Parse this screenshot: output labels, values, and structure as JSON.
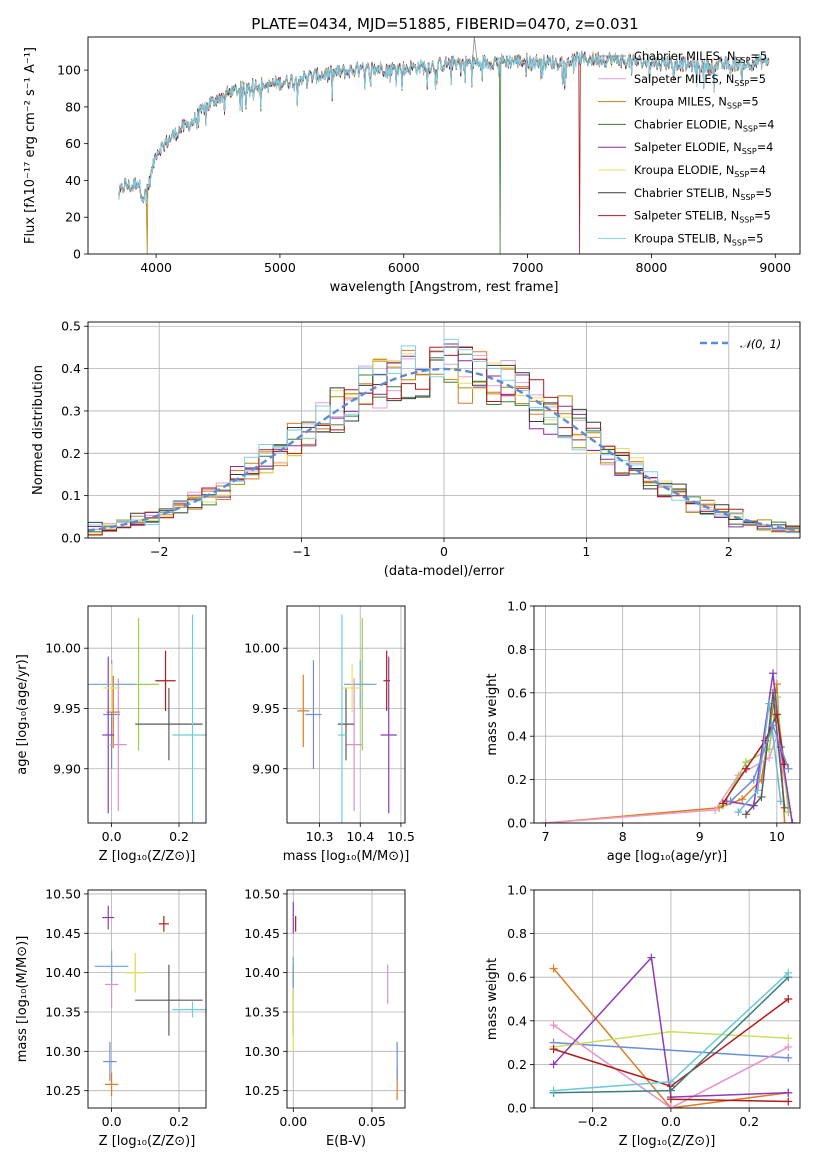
{
  "figure": {
    "title": "PLATE=0434, MJD=51885, FIBERID=0470, z=0.031"
  },
  "colors": {
    "series": [
      "#8e8e8e",
      "#e0a0d8",
      "#b8860b",
      "#3e7e3e",
      "#8c2c9c",
      "#e8e060",
      "#3a3a3a",
      "#b01c1c",
      "#80d0e8"
    ],
    "errorbar": [
      "#e07b20",
      "#6a8edc",
      "#e090c8",
      "#9bd050",
      "#8c3cb8",
      "#b01c1c",
      "#5a5a5a",
      "#68d0d8",
      "#7ea8e0",
      "#e8e060"
    ]
  },
  "chart_data": [
    {
      "type": "line",
      "name": "spectrum",
      "title": "PLATE=0434, MJD=51885, FIBERID=0470, z=0.031",
      "xlabel": "wavelength [Angstrom, rest frame]",
      "ylabel": "Flux [fλ10⁻¹⁷ erg cm⁻² s⁻¹ A⁻¹]",
      "xlim": [
        3450,
        9200
      ],
      "ylim": [
        0,
        118
      ],
      "xticks": [
        4000,
        5000,
        6000,
        7000,
        8000,
        9000
      ],
      "yticks": [
        0,
        20,
        40,
        60,
        80,
        100
      ],
      "grid": false,
      "legend_position": "upper-right",
      "x_range": [
        3700,
        8950
      ],
      "series": [
        {
          "name": "Chabrier MILES, N_SSP=5",
          "label_main": "Chabrier MILES, N",
          "label_sub": "SSP",
          "label_tail": "=5"
        },
        {
          "name": "Salpeter MILES, N_SSP=5",
          "label_main": "Salpeter MILES, N",
          "label_sub": "SSP",
          "label_tail": "=5"
        },
        {
          "name": "Kroupa MILES, N_SSP=5",
          "label_main": "Kroupa MILES, N",
          "label_sub": "SSP",
          "label_tail": "=5"
        },
        {
          "name": "Chabrier ELODIE, N_SSP=4",
          "label_main": "Chabrier ELODIE, N",
          "label_sub": "SSP",
          "label_tail": "=4"
        },
        {
          "name": "Salpeter ELODIE, N_SSP=4",
          "label_main": "Salpeter ELODIE, N",
          "label_sub": "SSP",
          "label_tail": "=4"
        },
        {
          "name": "Kroupa ELODIE, N_SSP=4",
          "label_main": "Kroupa ELODIE, N",
          "label_sub": "SSP",
          "label_tail": "=4"
        },
        {
          "name": "Chabrier STELIB, N_SSP=5",
          "label_main": "Chabrier STELIB, N",
          "label_sub": "SSP",
          "label_tail": "=5"
        },
        {
          "name": "Salpeter STELIB, N_SSP=5",
          "label_main": "Salpeter STELIB, N",
          "label_sub": "SSP",
          "label_tail": "=5"
        },
        {
          "name": "Kroupa STELIB, N_SSP=5",
          "label_main": "Kroupa STELIB, N",
          "label_sub": "SSP",
          "label_tail": "=5"
        }
      ],
      "continuum": [
        [
          3700,
          32
        ],
        [
          3750,
          38
        ],
        [
          3800,
          36
        ],
        [
          3850,
          40
        ],
        [
          3900,
          30
        ],
        [
          3950,
          40
        ],
        [
          4000,
          55
        ],
        [
          4100,
          62
        ],
        [
          4200,
          68
        ],
        [
          4300,
          72
        ],
        [
          4400,
          80
        ],
        [
          4500,
          85
        ],
        [
          4600,
          88
        ],
        [
          4700,
          90
        ],
        [
          4800,
          92
        ],
        [
          4900,
          92
        ],
        [
          5000,
          93
        ],
        [
          5200,
          96
        ],
        [
          5400,
          98
        ],
        [
          5600,
          100
        ],
        [
          5800,
          101
        ],
        [
          6000,
          101
        ],
        [
          6200,
          102
        ],
        [
          6400,
          104
        ],
        [
          6600,
          104
        ],
        [
          6800,
          105
        ],
        [
          7000,
          105
        ],
        [
          7200,
          104
        ],
        [
          7400,
          106
        ],
        [
          7600,
          106
        ],
        [
          7800,
          105
        ],
        [
          8000,
          104
        ],
        [
          8200,
          104
        ],
        [
          8400,
          102
        ],
        [
          8600,
          103
        ],
        [
          8800,
          104
        ],
        [
          8950,
          105
        ]
      ],
      "drops": [
        {
          "x": 3930,
          "y": 0,
          "series_index": 2
        },
        {
          "x": 6780,
          "y": 0,
          "series_index": 3
        },
        {
          "x": 7420,
          "y": 0,
          "series_index": 7
        }
      ],
      "spike": {
        "x": 6570,
        "y": 118
      }
    },
    {
      "type": "histogram",
      "name": "residual-distribution",
      "xlabel": "(data-model)/error",
      "ylabel": "Normed distribution",
      "xlim": [
        -2.5,
        2.5
      ],
      "ylim": [
        0,
        0.51
      ],
      "xticks": [
        -2,
        -1,
        0,
        1,
        2
      ],
      "yticks": [
        0.0,
        0.1,
        0.2,
        0.3,
        0.4,
        0.5
      ],
      "grid": true,
      "legend": [
        {
          "name": "𝒩(0, 1)",
          "style": "dashed"
        }
      ],
      "reference_curve": {
        "type": "gaussian",
        "mean": 0,
        "sigma": 1
      },
      "bin_width": 0.1
    },
    {
      "type": "scatter",
      "name": "age-vs-Z",
      "xlabel": "Z [log₁₀(Z/Z⊙)]",
      "ylabel": "age  [log₁₀(age/yr)]",
      "xlim": [
        -0.07,
        0.28
      ],
      "ylim": [
        9.855,
        10.035
      ],
      "xticks": [
        0.0,
        0.2
      ],
      "yticks": [
        9.9,
        9.95,
        10.0
      ],
      "grid": true,
      "points": [
        {
          "x": 0.005,
          "y": 9.947,
          "dx": 0.02,
          "dy": 0.03
        },
        {
          "x": 0.0,
          "y": 9.945,
          "dx": 0.025,
          "dy": 0.045
        },
        {
          "x": 0.02,
          "y": 9.92,
          "dx": 0.025,
          "dy": 0.055
        },
        {
          "x": 0.08,
          "y": 9.97,
          "dx": 0.06,
          "dy": 0.055
        },
        {
          "x": -0.01,
          "y": 9.928,
          "dx": 0.018,
          "dy": 0.065
        },
        {
          "x": 0.16,
          "y": 9.973,
          "dx": 0.03,
          "dy": 0.025
        },
        {
          "x": 0.17,
          "y": 9.937,
          "dx": 0.1,
          "dy": 0.03
        },
        {
          "x": 0.24,
          "y": 9.928,
          "dx": 0.06,
          "dy": 0.1
        },
        {
          "x": 0.0,
          "y": 9.97,
          "dx": 0.07,
          "dy": 0.02
        },
        {
          "x": 0.0,
          "y": 9.967,
          "dx": 0.025,
          "dy": 0.02
        }
      ]
    },
    {
      "type": "scatter",
      "name": "age-vs-mass",
      "xlabel": "mass [log₁₀(M/M⊙)]",
      "ylabel": "",
      "xlim": [
        10.22,
        10.51
      ],
      "ylim": [
        9.855,
        10.035
      ],
      "xticks": [
        10.3,
        10.4,
        10.5
      ],
      "yticks": [
        9.9,
        9.95,
        10.0
      ],
      "grid": true,
      "points": [
        {
          "x": 10.26,
          "y": 9.948,
          "dx": 0.015,
          "dy": 0.03
        },
        {
          "x": 10.285,
          "y": 9.945,
          "dx": 0.02,
          "dy": 0.045
        },
        {
          "x": 10.385,
          "y": 9.92,
          "dx": 0.02,
          "dy": 0.055
        },
        {
          "x": 10.405,
          "y": 9.97,
          "dx": 0.02,
          "dy": 0.055
        },
        {
          "x": 10.47,
          "y": 9.928,
          "dx": 0.02,
          "dy": 0.065
        },
        {
          "x": 10.465,
          "y": 9.973,
          "dx": 0.008,
          "dy": 0.025
        },
        {
          "x": 10.365,
          "y": 9.937,
          "dx": 0.02,
          "dy": 0.03
        },
        {
          "x": 10.355,
          "y": 9.928,
          "dx": 0.01,
          "dy": 0.1
        },
        {
          "x": 10.4,
          "y": 9.97,
          "dx": 0.04,
          "dy": 0.02
        },
        {
          "x": 10.38,
          "y": 9.967,
          "dx": 0.025,
          "dy": 0.02
        }
      ]
    },
    {
      "type": "line",
      "name": "mass-weight-vs-age",
      "xlabel": "age  [log₁₀(age/yr)]",
      "ylabel": "mass weight",
      "xlim": [
        6.85,
        10.3
      ],
      "ylim": [
        0,
        1.0
      ],
      "xticks": [
        7,
        8,
        9,
        10
      ],
      "yticks": [
        0.0,
        0.2,
        0.4,
        0.6,
        0.8,
        1.0
      ],
      "grid": true,
      "series": [
        {
          "x": [
            7.0,
            9.25,
            9.55,
            9.8,
            10.0,
            10.1
          ],
          "y": [
            0.0,
            0.07,
            0.11,
            0.2,
            0.64,
            0.0
          ]
        },
        {
          "x": [
            7.0,
            9.2,
            9.5,
            9.9,
            10.0,
            10.2
          ],
          "y": [
            0.0,
            0.06,
            0.22,
            0.3,
            0.4,
            0.0
          ]
        },
        {
          "x": [
            9.3,
            9.6,
            9.9,
            10.0,
            10.15
          ],
          "y": [
            0.08,
            0.28,
            0.34,
            0.58,
            0.05
          ]
        },
        {
          "x": [
            9.35,
            9.7,
            9.95,
            10.05,
            10.2
          ],
          "y": [
            0.1,
            0.08,
            0.69,
            0.35,
            0.0
          ]
        },
        {
          "x": [
            9.3,
            9.6,
            9.85,
            10.0,
            10.1
          ],
          "y": [
            0.09,
            0.25,
            0.38,
            0.5,
            0.27
          ]
        },
        {
          "x": [
            9.5,
            9.75,
            9.9,
            10.05
          ],
          "y": [
            0.05,
            0.15,
            0.55,
            0.1
          ]
        },
        {
          "x": [
            9.6,
            9.8,
            9.95,
            10.1
          ],
          "y": [
            0.04,
            0.12,
            0.6,
            0.07
          ]
        },
        {
          "x": [
            9.4,
            9.7,
            9.95,
            10.15
          ],
          "y": [
            0.1,
            0.2,
            0.45,
            0.25
          ]
        }
      ]
    },
    {
      "type": "scatter",
      "name": "mass-vs-Z",
      "xlabel": "Z [log₁₀(Z/Z⊙)]",
      "ylabel": "mass [log₁₀(M/M⊙)]",
      "xlim": [
        -0.07,
        0.28
      ],
      "ylim": [
        10.228,
        10.505
      ],
      "xticks": [
        0.0,
        0.2
      ],
      "yticks": [
        10.25,
        10.3,
        10.35,
        10.4,
        10.45,
        10.5
      ],
      "grid": true,
      "points": [
        {
          "x": 0.0,
          "y": 10.258,
          "dx": 0.02,
          "dy": 0.015
        },
        {
          "x": -0.005,
          "y": 10.287,
          "dx": 0.02,
          "dy": 0.025
        },
        {
          "x": 0.0,
          "y": 10.385,
          "dx": 0.02,
          "dy": 0.03
        },
        {
          "x": 0.07,
          "y": 10.4,
          "dx": 0.03,
          "dy": 0.025
        },
        {
          "x": -0.01,
          "y": 10.47,
          "dx": 0.018,
          "dy": 0.015
        },
        {
          "x": 0.155,
          "y": 10.462,
          "dx": 0.015,
          "dy": 0.01
        },
        {
          "x": 0.17,
          "y": 10.365,
          "dx": 0.1,
          "dy": 0.045
        },
        {
          "x": 0.24,
          "y": 10.353,
          "dx": 0.06,
          "dy": 0.01
        },
        {
          "x": 0.0,
          "y": 10.408,
          "dx": 0.05,
          "dy": 0.02
        },
        {
          "x": 0.07,
          "y": 10.4,
          "dx": 0.03,
          "dy": 0.025
        }
      ]
    },
    {
      "type": "scatter",
      "name": "mass-vs-ebv",
      "xlabel": "E(B-V)",
      "ylabel": "",
      "xlim": [
        -0.004,
        0.071
      ],
      "ylim": [
        10.228,
        10.505
      ],
      "xticks": [
        0.0,
        0.05
      ],
      "yticks": [
        10.25,
        10.3,
        10.35,
        10.4,
        10.45,
        10.5
      ],
      "grid": true,
      "points": [
        {
          "x": 0.066,
          "y": 10.258,
          "dx": 0.0,
          "dy": 0.02
        },
        {
          "x": 0.066,
          "y": 10.287,
          "dx": 0.0,
          "dy": 0.025
        },
        {
          "x": 0.06,
          "y": 10.385,
          "dx": 0.0,
          "dy": 0.025
        },
        {
          "x": 0.0,
          "y": 10.4,
          "dx": 0.0,
          "dy": 0.02
        },
        {
          "x": 0.0,
          "y": 10.47,
          "dx": 0.0,
          "dy": 0.02
        },
        {
          "x": 0.0015,
          "y": 10.462,
          "dx": 0.0,
          "dy": 0.01
        },
        {
          "x": 0.0,
          "y": 10.365,
          "dx": 0.0,
          "dy": 0.045
        },
        {
          "x": 0.0,
          "y": 10.353,
          "dx": 0.0,
          "dy": 0.01
        },
        {
          "x": 0.0,
          "y": 10.37,
          "dx": 0.0,
          "dy": 0.05
        },
        {
          "x": 0.0,
          "y": 10.34,
          "dx": 0.0,
          "dy": 0.04
        }
      ]
    },
    {
      "type": "line",
      "name": "mass-weight-vs-Z",
      "xlabel": "Z [log₁₀(Z/Z⊙)]",
      "ylabel": "mass weight",
      "xlim": [
        -0.35,
        0.33
      ],
      "ylim": [
        0,
        1.0
      ],
      "xticks": [
        -0.2,
        0.0,
        0.2
      ],
      "yticks": [
        0.0,
        0.2,
        0.4,
        0.6,
        0.8,
        1.0
      ],
      "grid": true,
      "series": [
        {
          "x": [
            -0.3,
            0.0,
            0.3
          ],
          "y": [
            0.64,
            0.0,
            0.07
          ]
        },
        {
          "x": [
            -0.3,
            0.3
          ],
          "y": [
            0.3,
            0.23
          ]
        },
        {
          "x": [
            -0.3,
            0.0,
            0.3
          ],
          "y": [
            0.38,
            0.0,
            0.28
          ]
        },
        {
          "x": [
            -0.3,
            0.0,
            0.3
          ],
          "y": [
            0.28,
            0.35,
            0.32
          ]
        },
        {
          "x": [
            -0.3,
            -0.05,
            0.0,
            0.3
          ],
          "y": [
            0.2,
            0.69,
            0.05,
            0.07
          ]
        },
        {
          "x": [
            -0.3,
            0.0,
            0.3
          ],
          "y": [
            0.27,
            0.1,
            0.5
          ]
        },
        {
          "x": [
            -0.3,
            0.0,
            0.3
          ],
          "y": [
            0.07,
            0.08,
            0.6
          ]
        },
        {
          "x": [
            -0.3,
            0.0,
            0.3
          ],
          "y": [
            0.08,
            0.12,
            0.62
          ]
        },
        {
          "x": [
            0.0,
            0.3
          ],
          "y": [
            0.04,
            0.03
          ]
        }
      ]
    }
  ]
}
